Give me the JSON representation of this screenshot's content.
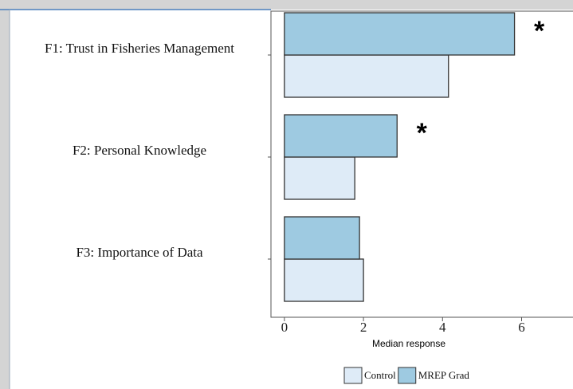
{
  "chart_data": {
    "type": "bar",
    "orientation": "horizontal",
    "categories": [
      "F1: Trust in Fisheries Management",
      "F2: Personal Knowledge",
      "F3: Importance of Data"
    ],
    "series": [
      {
        "name": "Control",
        "color": "#deebf7",
        "values": [
          4.15,
          1.78,
          2.0
        ]
      },
      {
        "name": "MREP Grad",
        "color": "#9ecae1",
        "values": [
          5.82,
          2.85,
          1.9
        ]
      }
    ],
    "annotations": [
      "*",
      "*",
      null
    ],
    "xlabel": "Median response",
    "xlim": [
      -0.34,
      7.3
    ],
    "xticks": [
      0,
      2,
      4,
      6
    ]
  }
}
